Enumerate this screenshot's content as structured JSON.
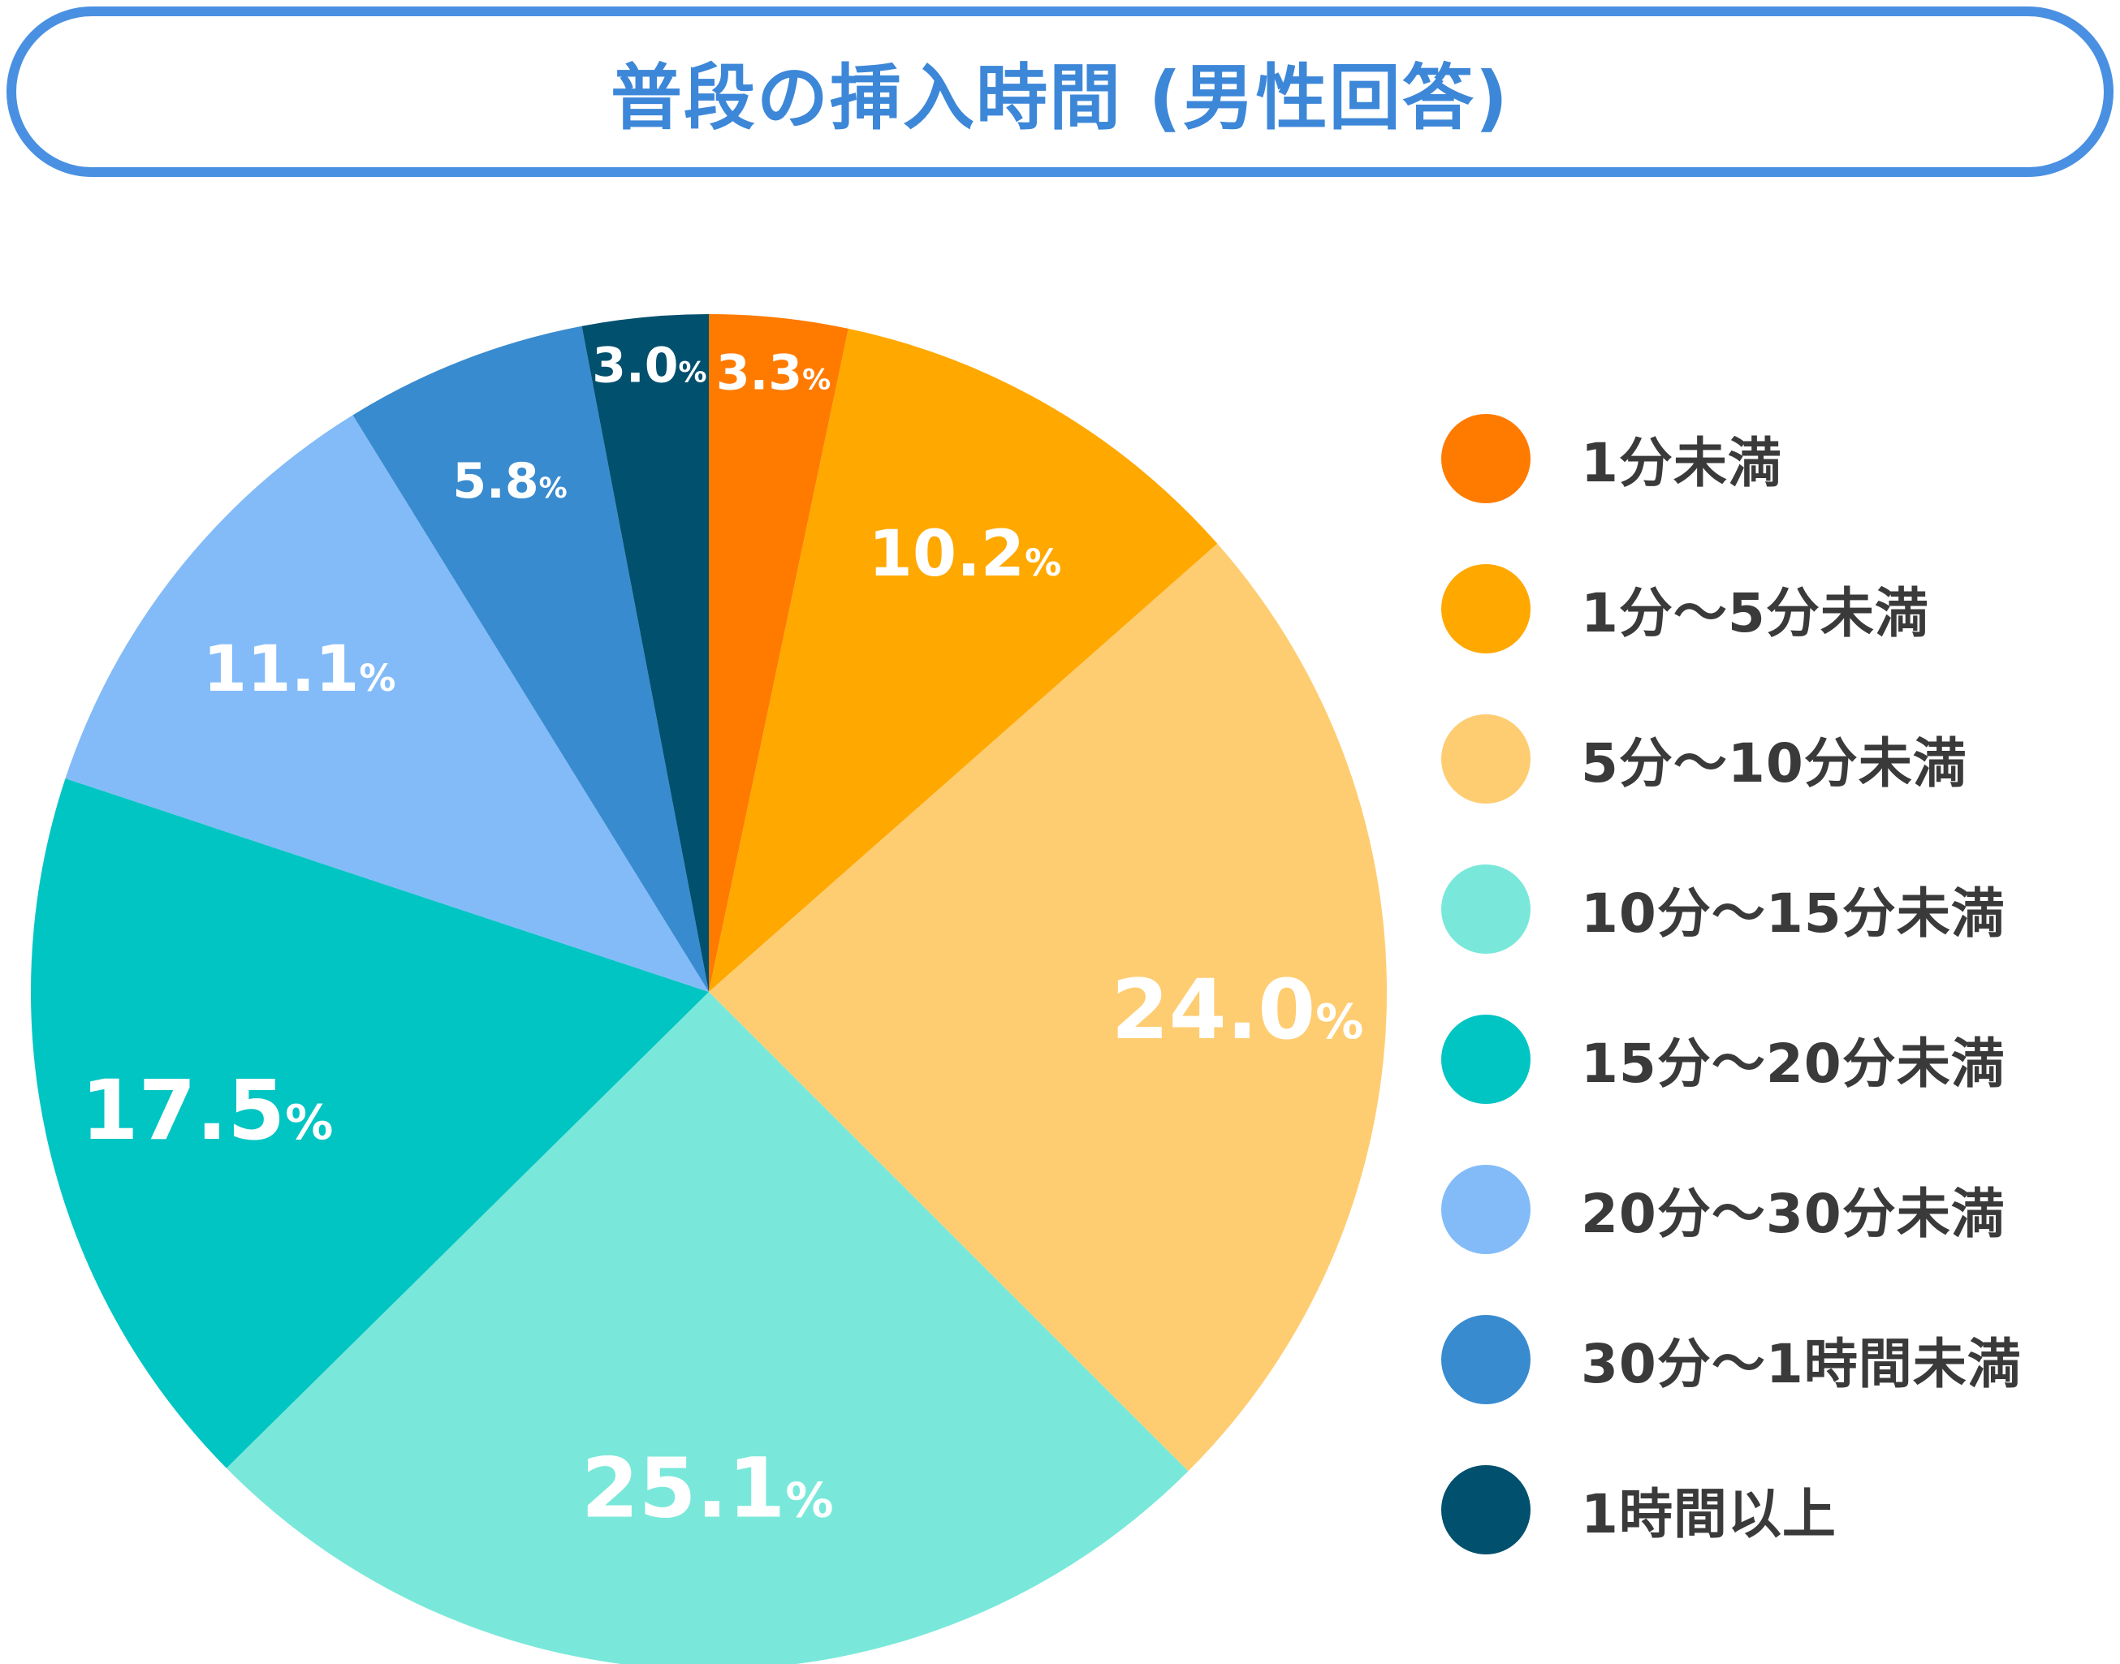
{
  "title": "普段の挿入時間 (男性回答)",
  "chart_data": {
    "type": "pie",
    "title": "普段の挿入時間 (男性回答)",
    "unit": "%",
    "legend_position": "right",
    "slices": [
      {
        "name": "1分未満",
        "value": 3.3,
        "label": "3.3",
        "color": "#ff7b00"
      },
      {
        "name": "1分～5分未満",
        "value": 10.2,
        "label": "10.2",
        "color": "#ffa800"
      },
      {
        "name": "5分～10分未満",
        "value": 24.0,
        "label": "24.0",
        "color": "#fecd72"
      },
      {
        "name": "10分～15分未満",
        "value": 25.1,
        "label": "25.1",
        "color": "#79e8da"
      },
      {
        "name": "15分～20分未満",
        "value": 17.5,
        "label": "17.5",
        "color": "#01c5c3"
      },
      {
        "name": "20分～30分未満",
        "value": 11.1,
        "label": "11.1",
        "color": "#83bbf8"
      },
      {
        "name": "30分～1時間未満",
        "value": 5.8,
        "label": "5.8",
        "color": "#398bcf"
      },
      {
        "name": "1時間以上",
        "value": 3.0,
        "label": "3.0",
        "color": "#01506e"
      }
    ]
  },
  "legend": {
    "items": [
      {
        "label": "1分未満",
        "color": "#ff7b00"
      },
      {
        "label": "1分～5分未満",
        "color": "#ffa800"
      },
      {
        "label": "5分～10分未満",
        "color": "#fecd72"
      },
      {
        "label": "10分～15分未満",
        "color": "#79e8da"
      },
      {
        "label": "15分～20分未満",
        "color": "#01c5c3"
      },
      {
        "label": "20分～30分未満",
        "color": "#83bbf8"
      },
      {
        "label": "30分～1時間未満",
        "color": "#398bcf"
      },
      {
        "label": "1時間以上",
        "color": "#01506e"
      }
    ]
  }
}
